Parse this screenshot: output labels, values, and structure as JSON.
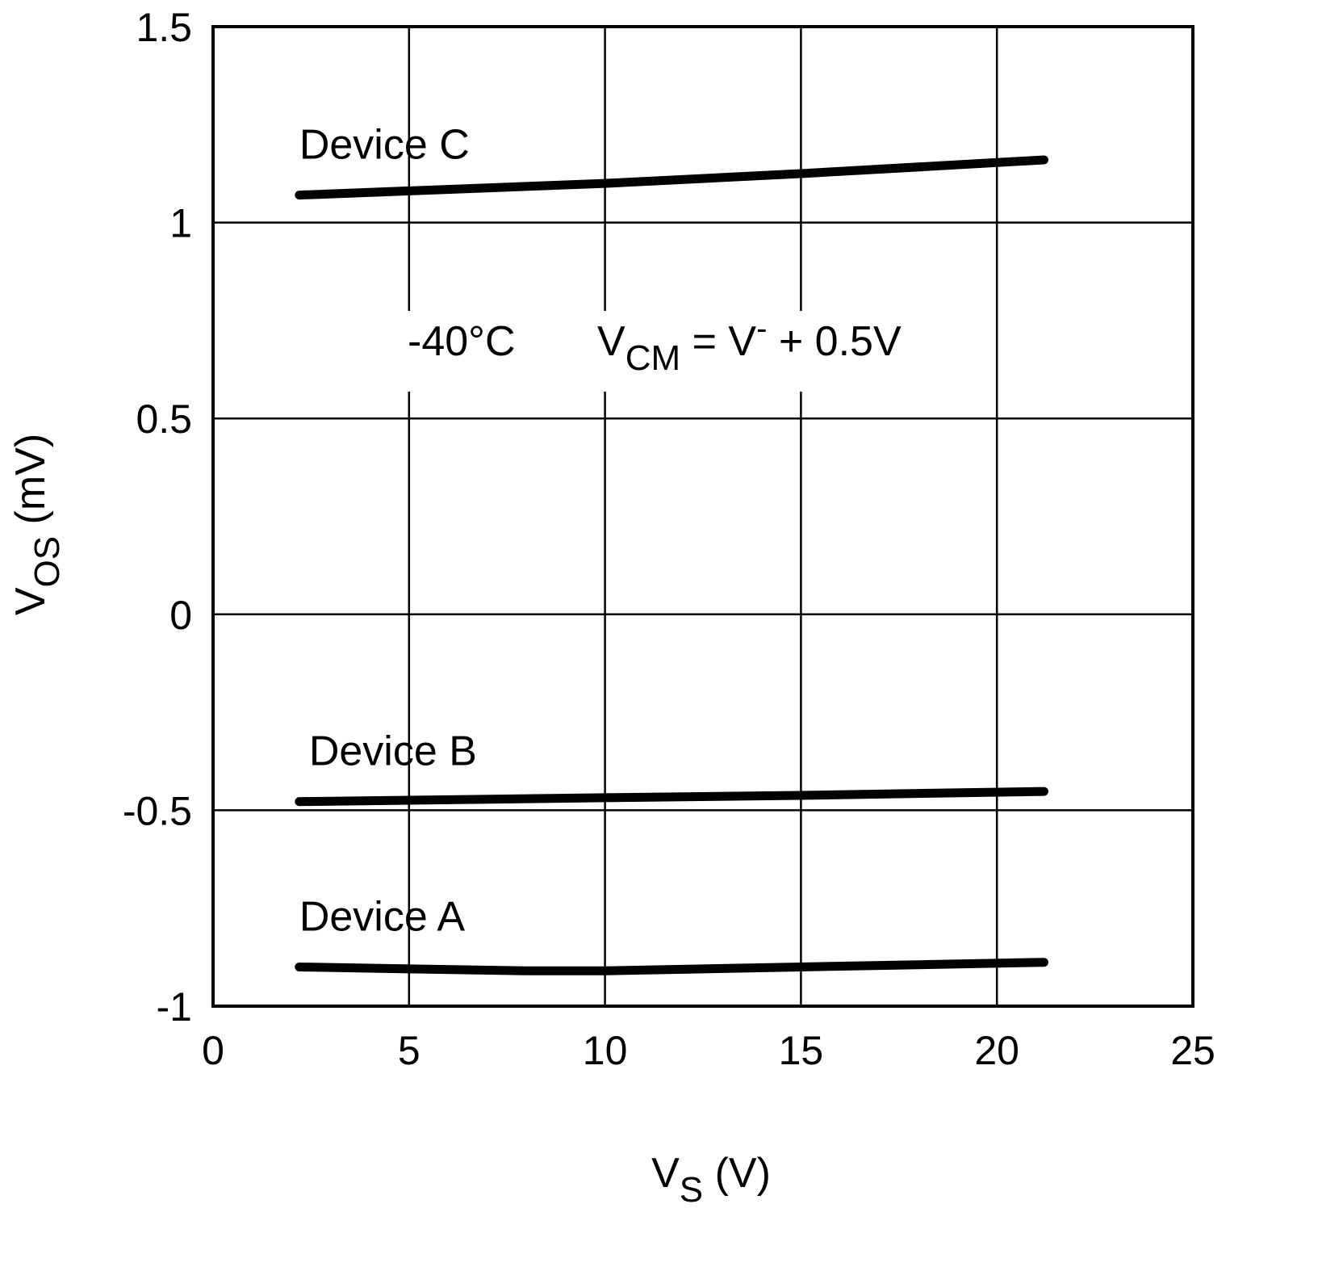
{
  "chart_data": {
    "type": "line",
    "xlabel": {
      "main": "V",
      "sub": "S",
      "rest": " (V)"
    },
    "ylabel": {
      "main": "V",
      "sub": "OS",
      "rest": " (mV)"
    },
    "xlim": [
      0,
      25
    ],
    "ylim": [
      -1,
      1.5
    ],
    "xticks": [
      0,
      5,
      10,
      15,
      20,
      25
    ],
    "xtick_labels": [
      "0",
      "5",
      "10",
      "15",
      "20",
      "25"
    ],
    "yticks": [
      -1,
      -0.5,
      0,
      0.5,
      1,
      1.5
    ],
    "ytick_labels": [
      "-1",
      "-0.5",
      "0",
      "0.5",
      "1",
      "1.5"
    ],
    "grid": true,
    "annotations": {
      "temperature": "-40°C",
      "vcm_main": "V",
      "vcm_sub": "CM",
      "vcm_eq": " = V",
      "vcm_sup": "-",
      "vcm_rest": " + 0.5V"
    },
    "series": [
      {
        "name": "Device C",
        "x": [
          2.2,
          10,
          15,
          21.2
        ],
        "y": [
          1.07,
          1.1,
          1.125,
          1.16
        ]
      },
      {
        "name": "Device B",
        "x": [
          2.2,
          10,
          15,
          21.2
        ],
        "y": [
          -0.478,
          -0.468,
          -0.462,
          -0.452
        ]
      },
      {
        "name": "Device A",
        "x": [
          2.2,
          5,
          8,
          10,
          15,
          21.2
        ],
        "y": [
          -0.9,
          -0.905,
          -0.91,
          -0.91,
          -0.9,
          -0.888
        ]
      }
    ]
  }
}
